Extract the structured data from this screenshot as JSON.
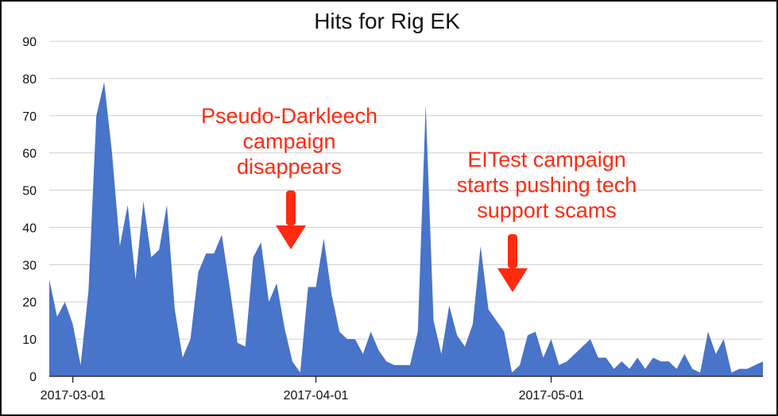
{
  "chart_data": {
    "type": "area",
    "title": "Hits for Rig EK",
    "xlabel": "",
    "ylabel": "",
    "ylim": [
      0,
      90
    ],
    "yticks": [
      0,
      10,
      20,
      30,
      40,
      50,
      60,
      70,
      80,
      90
    ],
    "xticks": [
      "2017-03-01",
      "2017-04-01",
      "2017-05-01"
    ],
    "grid": true,
    "legend": "none",
    "colors": {
      "area": "#4874c9",
      "annotation": "#ff2a0f",
      "grid": "#cfcfcf"
    },
    "x_start": "2017-02-26",
    "series": [
      {
        "values": [
          26,
          16,
          20,
          14,
          3,
          23,
          70,
          79,
          60,
          35,
          46,
          26,
          47,
          32,
          34,
          46,
          18,
          5,
          10,
          28,
          33,
          33,
          38,
          24,
          9,
          8,
          32,
          36,
          20,
          25,
          13,
          4,
          1,
          24,
          24,
          37,
          22,
          12,
          10,
          10,
          6,
          12,
          7,
          4,
          3,
          3,
          3,
          12,
          73,
          15,
          6,
          19,
          11,
          8,
          14,
          35,
          18,
          15,
          12,
          1,
          3,
          11,
          12,
          5,
          10,
          3,
          4,
          6,
          8,
          10,
          5,
          5,
          2,
          4,
          2,
          5,
          2,
          5,
          4,
          4,
          2,
          6,
          2,
          1,
          12,
          6,
          10,
          1,
          2,
          2,
          3,
          4
        ]
      }
    ],
    "annotations": [
      {
        "lines": [
          "Pseudo-Darkleech",
          "campaign",
          "disappears"
        ],
        "date": "2017-04-01"
      },
      {
        "lines": [
          "EITest campaign",
          "starts pushing tech",
          "support scams"
        ],
        "date": "2017-04-30"
      }
    ]
  }
}
